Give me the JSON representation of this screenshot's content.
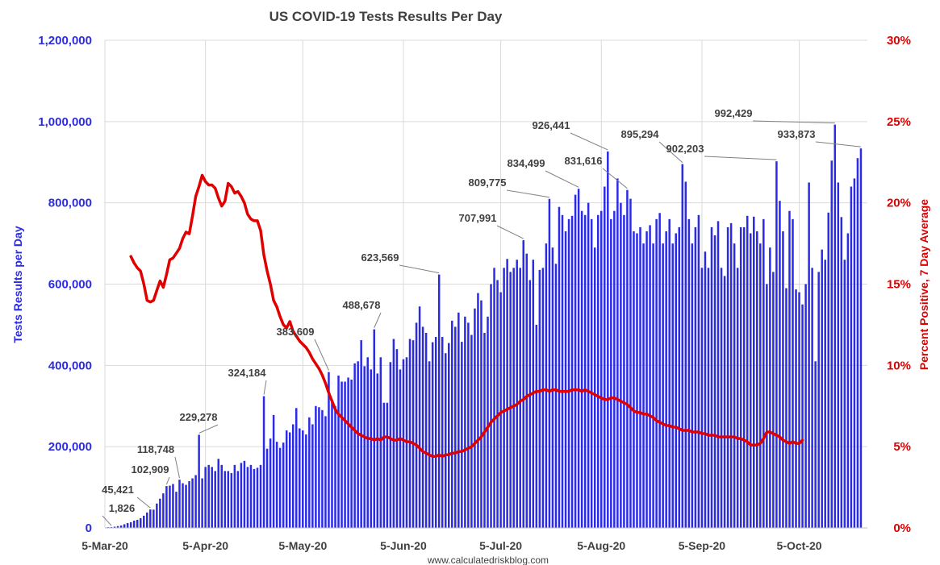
{
  "chart_data": {
    "type": "bar",
    "title": "US COVID-19 Tests Results Per Day",
    "source": "www.calculatedriskblog.com",
    "ylabel": "Tests Results per Day",
    "y2label": "Percent Positive, 7 Day Average",
    "ylim": [
      0,
      1200000
    ],
    "y2lim": [
      0,
      30
    ],
    "grid": true,
    "colors": {
      "bars": "#2b2be6",
      "line": "#e00000",
      "left_axis_text": "#2b2be6",
      "right_axis_text": "#e00000"
    },
    "x_ticks": [
      "5-Mar-20",
      "5-Apr-20",
      "5-May-20",
      "5-Jun-20",
      "5-Jul-20",
      "5-Aug-20",
      "5-Sep-20",
      "5-Oct-20"
    ],
    "y_ticks": [
      "0",
      "200,000",
      "400,000",
      "600,000",
      "800,000",
      "1,000,000",
      "1,200,000"
    ],
    "y2_ticks": [
      "0%",
      "5%",
      "10%",
      "15%",
      "20%",
      "25%",
      "30%"
    ],
    "x_start": "2020-03-05",
    "x_end": "2020-10-26",
    "series": [
      {
        "name": "Tests Results per Day",
        "kind": "bar",
        "axis": "left",
        "x_first": "2020-03-06",
        "values": [
          1800,
          1826,
          3000,
          4500,
          6000,
          9000,
          12000,
          14000,
          18000,
          20000,
          24000,
          30000,
          38000,
          45421,
          45000,
          60000,
          72000,
          85000,
          102909,
          104000,
          108000,
          89000,
          118748,
          110000,
          106000,
          115000,
          122000,
          130000,
          229278,
          122000,
          150000,
          155000,
          150000,
          140000,
          170000,
          155000,
          140000,
          140000,
          135000,
          155000,
          140000,
          160000,
          165000,
          150000,
          155000,
          145000,
          148000,
          155000,
          324184,
          195000,
          220000,
          278000,
          212000,
          197000,
          210000,
          240000,
          235000,
          255000,
          295000,
          245000,
          240000,
          230000,
          272000,
          255000,
          300000,
          297000,
          290000,
          275000,
          383609,
          310000,
          300000,
          375000,
          360000,
          360000,
          370000,
          365000,
          405000,
          410000,
          462000,
          398000,
          420000,
          390000,
          488678,
          380000,
          420000,
          308000,
          308000,
          408000,
          465000,
          440000,
          390000,
          415000,
          420000,
          465000,
          462000,
          505000,
          545000,
          495000,
          480000,
          410000,
          457000,
          470000,
          623569,
          470000,
          430000,
          455000,
          510000,
          495000,
          530000,
          458000,
          520000,
          505000,
          475000,
          540000,
          578000,
          560000,
          480000,
          520000,
          600000,
          640000,
          610000,
          580000,
          640000,
          662000,
          630000,
          640000,
          660000,
          640000,
          707991,
          675000,
          610000,
          660000,
          500000,
          635000,
          640000,
          700000,
          809775,
          690000,
          650000,
          790000,
          770000,
          730000,
          760000,
          768000,
          820000,
          834499,
          780000,
          770000,
          800000,
          760000,
          690000,
          770000,
          780000,
          840000,
          926441,
          760000,
          780000,
          860000,
          800000,
          770000,
          831616,
          810000,
          730000,
          725000,
          740000,
          700000,
          730000,
          745000,
          700000,
          760000,
          775000,
          700000,
          730000,
          760000,
          700000,
          725000,
          740000,
          895294,
          852000,
          760000,
          700000,
          740000,
          770000,
          640000,
          680000,
          640000,
          740000,
          720000,
          755000,
          640000,
          620000,
          740000,
          750000,
          700000,
          640000,
          740000,
          740000,
          768000,
          725000,
          766000,
          730000,
          700000,
          760000,
          600000,
          690000,
          630000,
          902203,
          805000,
          730000,
          590000,
          780000,
          760000,
          587000,
          580000,
          550000,
          600000,
          850000,
          640000,
          410000,
          630000,
          685000,
          660000,
          776000,
          904000,
          992429,
          850000,
          765000,
          660000,
          725000,
          840000,
          860000,
          910000,
          933873
        ]
      },
      {
        "name": "Percent Positive, 7 Day Average",
        "kind": "line",
        "axis": "right",
        "x_first": "2020-03-13",
        "values": [
          16.7,
          16.3,
          16.0,
          15.8,
          15.0,
          14.0,
          13.9,
          14.0,
          14.6,
          15.2,
          14.8,
          15.6,
          16.5,
          16.6,
          16.9,
          17.2,
          17.8,
          18.2,
          18.1,
          19.2,
          20.4,
          21.0,
          21.7,
          21.3,
          21.1,
          21.1,
          20.9,
          20.3,
          19.8,
          20.1,
          21.2,
          21.0,
          20.6,
          20.7,
          20.4,
          20.0,
          19.3,
          19.0,
          18.9,
          18.9,
          18.3,
          16.8,
          15.8,
          15.0,
          14.0,
          13.6,
          13.0,
          12.5,
          12.3,
          12.7,
          12.1,
          11.8,
          11.5,
          11.3,
          11.1,
          10.8,
          10.4,
          10.1,
          9.8,
          9.4,
          8.9,
          8.3,
          7.8,
          7.3,
          7.0,
          6.8,
          6.6,
          6.4,
          6.2,
          6.0,
          5.8,
          5.7,
          5.6,
          5.5,
          5.5,
          5.4,
          5.5,
          5.4,
          5.6,
          5.6,
          5.5,
          5.4,
          5.4,
          5.5,
          5.4,
          5.3,
          5.3,
          5.2,
          5.1,
          4.9,
          4.7,
          4.6,
          4.5,
          4.4,
          4.4,
          4.5,
          4.4,
          4.5,
          4.5,
          4.6,
          4.6,
          4.7,
          4.7,
          4.8,
          4.9,
          5.0,
          5.2,
          5.4,
          5.6,
          5.9,
          6.2,
          6.5,
          6.7,
          6.9,
          7.1,
          7.2,
          7.3,
          7.4,
          7.5,
          7.6,
          7.8,
          7.9,
          8.1,
          8.2,
          8.3,
          8.4,
          8.4,
          8.5,
          8.5,
          8.4,
          8.5,
          8.5,
          8.4,
          8.4,
          8.4,
          8.4,
          8.5,
          8.5,
          8.5,
          8.4,
          8.5,
          8.4,
          8.3,
          8.2,
          8.1,
          8.0,
          7.9,
          7.9,
          8.0,
          8.0,
          7.9,
          7.8,
          7.7,
          7.6,
          7.4,
          7.2,
          7.1,
          7.1,
          7.0,
          7.0,
          6.9,
          6.8,
          6.6,
          6.5,
          6.4,
          6.3,
          6.3,
          6.2,
          6.2,
          6.1,
          6.0,
          6.0,
          6.0,
          5.9,
          5.9,
          5.9,
          5.8,
          5.8,
          5.7,
          5.7,
          5.7,
          5.6,
          5.6,
          5.6,
          5.6,
          5.6,
          5.6,
          5.5,
          5.5,
          5.4,
          5.3,
          5.1,
          5.1,
          5.1,
          5.2,
          5.5,
          5.9,
          5.9,
          5.8,
          5.7,
          5.6,
          5.4,
          5.3,
          5.2,
          5.3,
          5.2,
          5.2,
          5.4
        ]
      }
    ],
    "data_labels": [
      {
        "text": "1,826"
      },
      {
        "text": "45,421"
      },
      {
        "text": "102,909"
      },
      {
        "text": "118,748"
      },
      {
        "text": "229,278"
      },
      {
        "text": "324,184"
      },
      {
        "text": "383,609"
      },
      {
        "text": "488,678"
      },
      {
        "text": "623,569"
      },
      {
        "text": "707,991"
      },
      {
        "text": "809,775"
      },
      {
        "text": "834,499"
      },
      {
        "text": "926,441"
      },
      {
        "text": "831,616"
      },
      {
        "text": "895,294"
      },
      {
        "text": "902,203"
      },
      {
        "text": "992,429"
      },
      {
        "text": "933,873"
      }
    ]
  }
}
